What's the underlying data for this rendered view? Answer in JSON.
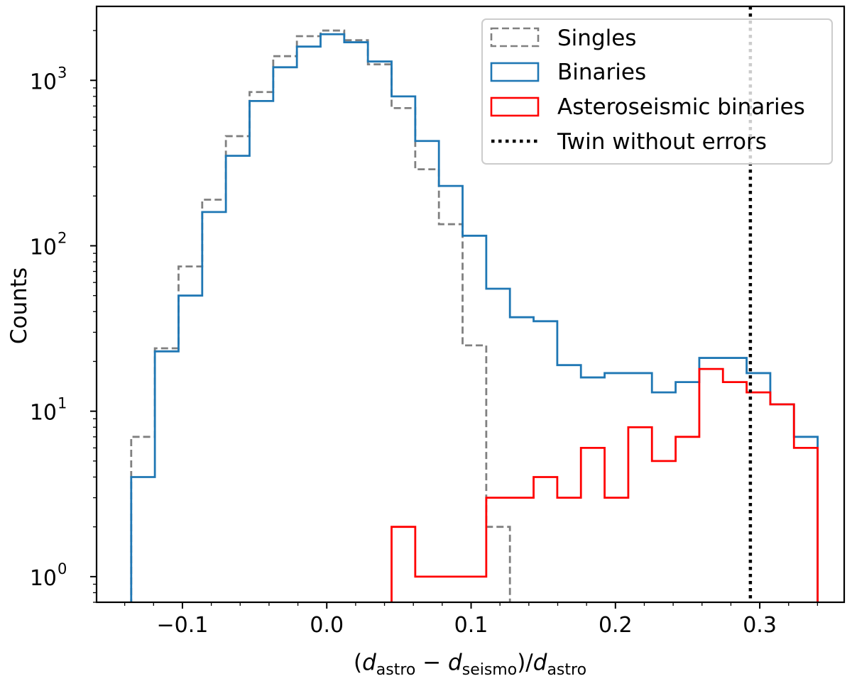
{
  "chart_data": {
    "type": "histogram",
    "xlabel": {
      "open": "(",
      "d1": "d",
      "s1": "astro",
      "minus": " − ",
      "d2": "d",
      "s2": "seismo",
      "mid": ")/",
      "d3": "d",
      "s3": "astro"
    },
    "ylabel": "Counts",
    "yscale": "log",
    "xlim": [
      -0.1595,
      0.3585
    ],
    "ylim": [
      0.7,
      2800
    ],
    "x_ticks": [
      {
        "value": -0.1,
        "label": "−0.1"
      },
      {
        "value": 0.0,
        "label": "0.0"
      },
      {
        "value": 0.1,
        "label": "0.1"
      },
      {
        "value": 0.2,
        "label": "0.2"
      },
      {
        "value": 0.3,
        "label": "0.3"
      }
    ],
    "y_ticks": [
      {
        "value": 1,
        "base": "10",
        "exp": "0"
      },
      {
        "value": 10,
        "base": "10",
        "exp": "1"
      },
      {
        "value": 100,
        "base": "10",
        "exp": "2"
      },
      {
        "value": 1000,
        "base": "10",
        "exp": "3"
      }
    ],
    "series": [
      {
        "name": "Singles",
        "color": "#808080",
        "style": "dashed",
        "bin_edges": [
          -0.1355,
          -0.1191,
          -0.1027,
          -0.0863,
          -0.0699,
          -0.0535,
          -0.0371,
          -0.0207,
          -0.0043,
          0.0121,
          0.0285,
          0.0449,
          0.0613,
          0.0777,
          0.0941,
          0.1105,
          0.1269
        ],
        "counts": [
          7,
          24,
          75,
          190,
          460,
          850,
          1400,
          1850,
          2000,
          1750,
          1250,
          680,
          290,
          135,
          25,
          2
        ]
      },
      {
        "name": "Binaries",
        "color": "#1f77b4",
        "style": "solid",
        "bin_edges": [
          -0.1355,
          -0.1191,
          -0.1027,
          -0.0863,
          -0.0699,
          -0.0535,
          -0.0371,
          -0.0207,
          -0.0043,
          0.0121,
          0.0285,
          0.0449,
          0.0613,
          0.0777,
          0.0941,
          0.1105,
          0.1269,
          0.1433,
          0.1597,
          0.1761,
          0.1925,
          0.2089,
          0.2253,
          0.2417,
          0.2581,
          0.2745,
          0.2909,
          0.3073,
          0.3237,
          0.3401
        ],
        "counts": [
          4,
          23,
          50,
          160,
          350,
          750,
          1200,
          1600,
          1900,
          1700,
          1300,
          800,
          430,
          230,
          115,
          55,
          37,
          35,
          19,
          16,
          17,
          17,
          13,
          15,
          21,
          21,
          17,
          11,
          7
        ]
      },
      {
        "name": "Asteroseismic binaries",
        "color": "#ff0000",
        "style": "solid",
        "bin_edges": [
          0.0449,
          0.0613,
          0.0777,
          0.0941,
          0.1105,
          0.1269,
          0.1433,
          0.1597,
          0.1761,
          0.1925,
          0.2089,
          0.2253,
          0.2417,
          0.2581,
          0.2745,
          0.2909,
          0.3073,
          0.3237,
          0.3401
        ],
        "counts": [
          2,
          1,
          1,
          1,
          3,
          3,
          4,
          3,
          6,
          3,
          8,
          5,
          7,
          18,
          15,
          13,
          11,
          6
        ]
      }
    ],
    "reference_line": {
      "name": "Twin without errors",
      "x": 0.2935,
      "color": "#000000",
      "style": "dotted"
    },
    "legend": {
      "position": "top-right",
      "entries": [
        "Singles",
        "Binaries",
        "Asteroseismic binaries",
        "Twin without errors"
      ]
    }
  }
}
